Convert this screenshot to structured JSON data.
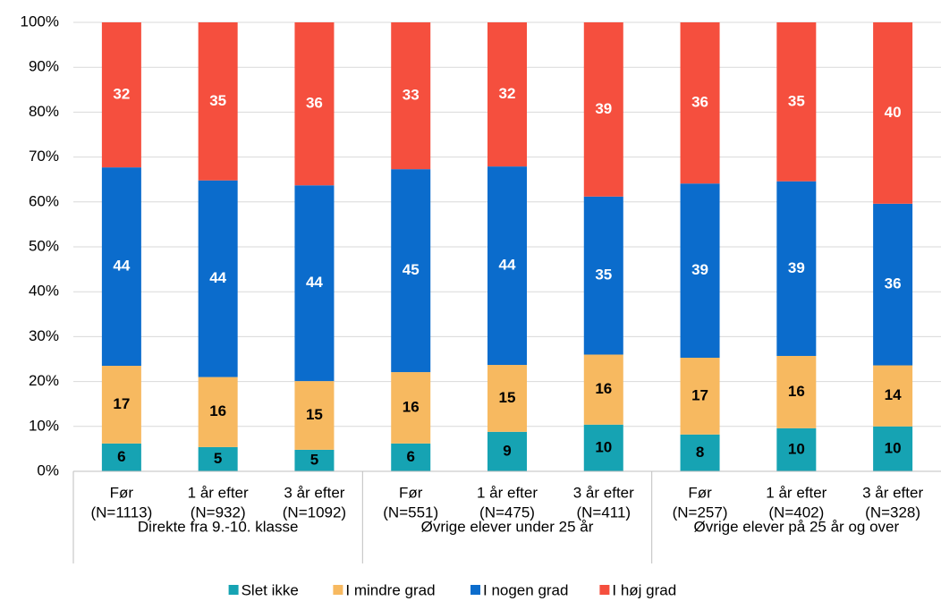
{
  "chart_data": {
    "type": "stacked_bar_100",
    "categories": [
      [
        "Før",
        "(N=1113)"
      ],
      [
        "1 år efter",
        "(N=932)"
      ],
      [
        "3 år efter",
        "(N=1092)"
      ],
      [
        "Før",
        "(N=551)"
      ],
      [
        "1 år efter",
        "(N=475)"
      ],
      [
        "3 år efter",
        "(N=411)"
      ],
      [
        "Før",
        "(N=257)"
      ],
      [
        "1 år efter",
        "(N=402)"
      ],
      [
        "3 år efter",
        "(N=328)"
      ]
    ],
    "group_labels": [
      "Direkte fra 9.-10. klasse",
      "Øvrige elever under 25 år",
      "Øvrige elever på 25 år og over"
    ],
    "series": [
      {
        "name": "Slet ikke",
        "color": "#16a3b3",
        "label_color": "#000000",
        "values": [
          6.2,
          5.4,
          4.8,
          6.2,
          8.8,
          10.4,
          8.2,
          9.6,
          10.0
        ],
        "value_labels": [
          "6",
          "5",
          "5",
          "6",
          "9",
          "10",
          "8",
          "10",
          "10"
        ]
      },
      {
        "name": "I mindre grad",
        "color": "#f7b960",
        "label_color": "#000000",
        "values": [
          17.3,
          15.6,
          15.3,
          15.9,
          14.9,
          15.6,
          17.1,
          16.1,
          13.6
        ],
        "value_labels": [
          "17",
          "16",
          "15",
          "16",
          "15",
          "16",
          "17",
          "16",
          "14"
        ]
      },
      {
        "name": "I nogen grad",
        "color": "#0b6ccc",
        "label_color": "#ffffff",
        "values": [
          44.2,
          43.8,
          43.6,
          45.2,
          44.2,
          35.2,
          38.8,
          38.9,
          36.0
        ],
        "value_labels": [
          "44",
          "44",
          "44",
          "45",
          "44",
          "35",
          "39",
          "39",
          "36"
        ]
      },
      {
        "name": "I høj grad",
        "color": "#f54f3e",
        "label_color": "#ffffff",
        "values": [
          32.3,
          35.2,
          36.3,
          32.7,
          32.1,
          38.8,
          35.9,
          35.4,
          40.4
        ],
        "value_labels": [
          "32",
          "35",
          "36",
          "33",
          "32",
          "39",
          "36",
          "35",
          "40"
        ]
      }
    ],
    "ylim": [
      0,
      100
    ],
    "yticks": [
      {
        "value": 0,
        "label": "0%"
      },
      {
        "value": 10,
        "label": "10%"
      },
      {
        "value": 20,
        "label": "20%"
      },
      {
        "value": 30,
        "label": "30%"
      },
      {
        "value": 40,
        "label": "40%"
      },
      {
        "value": 50,
        "label": "50%"
      },
      {
        "value": 60,
        "label": "60%"
      },
      {
        "value": 70,
        "label": "70%"
      },
      {
        "value": 80,
        "label": "80%"
      },
      {
        "value": 90,
        "label": "90%"
      },
      {
        "value": 100,
        "label": "100%"
      }
    ],
    "grid": true,
    "legend": "bottom"
  }
}
